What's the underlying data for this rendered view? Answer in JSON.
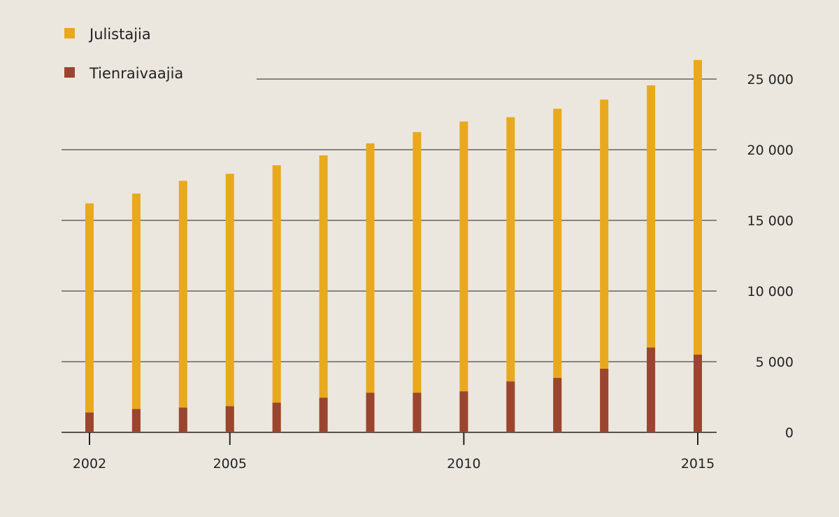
{
  "chart_data": {
    "type": "bar",
    "stacking": "overlay",
    "categories": [
      "2002",
      "2003",
      "2004",
      "2005",
      "2006",
      "2007",
      "2008",
      "2009",
      "2010",
      "2011",
      "2012",
      "2013",
      "2014",
      "2015"
    ],
    "x_tick_labels": [
      "2002",
      "2005",
      "2010",
      "2015"
    ],
    "series": [
      {
        "name": "Julistajia",
        "color": "#e8a91e",
        "values": [
          16200,
          16900,
          17800,
          18300,
          18900,
          19600,
          20450,
          21250,
          22000,
          22300,
          22900,
          23550,
          24550,
          26350
        ]
      },
      {
        "name": "Tienraivaajia",
        "color": "#9b4530",
        "values": [
          1400,
          1650,
          1750,
          1850,
          2100,
          2450,
          2800,
          2800,
          2900,
          3600,
          3850,
          4500,
          6000,
          5500
        ]
      }
    ],
    "y_ticks": [
      "0",
      "5 000",
      "10 000",
      "15 000",
      "20 000",
      "25 000"
    ],
    "y_tick_values": [
      0,
      5000,
      10000,
      15000,
      20000,
      25000
    ],
    "ylim": [
      0,
      27000
    ],
    "y_axis_side": "right",
    "grid": true,
    "legend_placement": "top-left",
    "title": "",
    "xlabel": "",
    "ylabel": ""
  }
}
